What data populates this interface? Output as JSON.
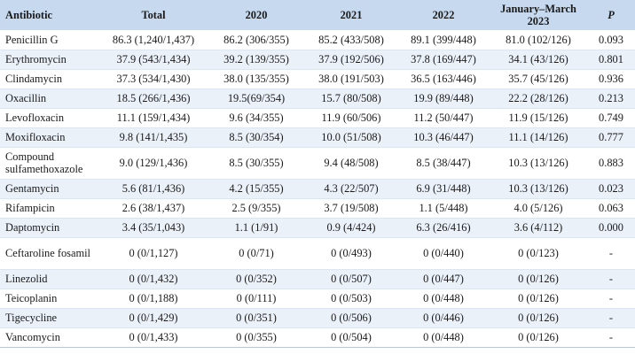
{
  "headers": {
    "antibiotic": "Antibiotic",
    "total": "Total",
    "y2020": "2020",
    "y2021": "2021",
    "y2022": "2022",
    "y2023_line1": "January–March",
    "y2023_line2": "2023",
    "p": "P"
  },
  "rows": [
    {
      "name": "Penicillin G",
      "total": "86.3 (1,240/1,437)",
      "y2020": "86.2 (306/355)",
      "y2021": "85.2 (433/508)",
      "y2022": "89.1 (399/448)",
      "y2023": "81.0 (102/126)",
      "p": "0.093"
    },
    {
      "name": "Erythromycin",
      "total": "37.9 (543/1,434)",
      "y2020": "39.2 (139/355)",
      "y2021": "37.9 (192/506)",
      "y2022": "37.8 (169/447)",
      "y2023": "34.1 (43/126)",
      "p": "0.801"
    },
    {
      "name": "Clindamycin",
      "total": "37.3 (534/1,430)",
      "y2020": "38.0 (135/355)",
      "y2021": "38.0 (191/503)",
      "y2022": "36.5 (163/446)",
      "y2023": "35.7 (45/126)",
      "p": "0.936"
    },
    {
      "name": "Oxacillin",
      "total": "18.5 (266/1,436)",
      "y2020": "19.5(69/354)",
      "y2021": "15.7 (80/508)",
      "y2022": "19.9 (89/448)",
      "y2023": "22.2 (28/126)",
      "p": "0.213"
    },
    {
      "name": "Levofloxacin",
      "total": "11.1 (159/1,434)",
      "y2020": "9.6 (34/355)",
      "y2021": "11.9 (60/506)",
      "y2022": "11.2 (50/447)",
      "y2023": "11.9 (15/126)",
      "p": "0.749"
    },
    {
      "name": "Moxifloxacin",
      "total": "9.8 (141/1,435)",
      "y2020": "8.5 (30/354)",
      "y2021": "10.0 (51/508)",
      "y2022": "10.3 (46/447)",
      "y2023": "11.1 (14/126)",
      "p": "0.777"
    },
    {
      "name": "Compound sulfamethoxazole",
      "total": "9.0 (129/1,436)",
      "y2020": "8.5 (30/355)",
      "y2021": "9.4 (48/508)",
      "y2022": "8.5 (38/447)",
      "y2023": "10.3 (13/126)",
      "p": "0.883",
      "tall": true
    },
    {
      "name": "Gentamycin",
      "total": "5.6 (81/1,436)",
      "y2020": "4.2 (15/355)",
      "y2021": "4.3 (22/507)",
      "y2022": "6.9 (31/448)",
      "y2023": "10.3 (13/126)",
      "p": "0.023"
    },
    {
      "name": "Rifampicin",
      "total": "2.6 (38/1,437)",
      "y2020": "2.5 (9/355)",
      "y2021": "3.7 (19/508)",
      "y2022": "1.1 (5/448)",
      "y2023": "4.0 (5/126)",
      "p": "0.063"
    },
    {
      "name": "Daptomycin",
      "total": "3.4 (35/1,043)",
      "y2020": "1.1 (1/91)",
      "y2021": "0.9 (4/424)",
      "y2022": "6.3 (26/416)",
      "y2023": "3.6 (4/112)",
      "p": "0.000"
    },
    {
      "name": "Ceftaroline fosamil",
      "total": "0 (0/1,127)",
      "y2020": "0 (0/71)",
      "y2021": "0 (0/493)",
      "y2022": "0 (0/440)",
      "y2023": "0 (0/123)",
      "p": "-",
      "tall": true
    },
    {
      "name": "Linezolid",
      "total": "0 (0/1,432)",
      "y2020": "0 (0/352)",
      "y2021": "0 (0/507)",
      "y2022": "0 (0/447)",
      "y2023": "0 (0/126)",
      "p": "-"
    },
    {
      "name": "Teicoplanin",
      "total": "0 (0/1,188)",
      "y2020": "0 (0/111)",
      "y2021": "0 (0/503)",
      "y2022": "0 (0/448)",
      "y2023": "0 (0/126)",
      "p": "-"
    },
    {
      "name": "Tigecycline",
      "total": "0 (0/1,429)",
      "y2020": "0 (0/351)",
      "y2021": "0 (0/506)",
      "y2022": "0 (0/446)",
      "y2023": "0 (0/126)",
      "p": "-"
    },
    {
      "name": "Vancomycin",
      "total": "0 (0/1,433)",
      "y2020": "0 (0/355)",
      "y2021": "0 (0/504)",
      "y2022": "0 (0/448)",
      "y2023": "0 (0/126)",
      "p": "-"
    }
  ]
}
